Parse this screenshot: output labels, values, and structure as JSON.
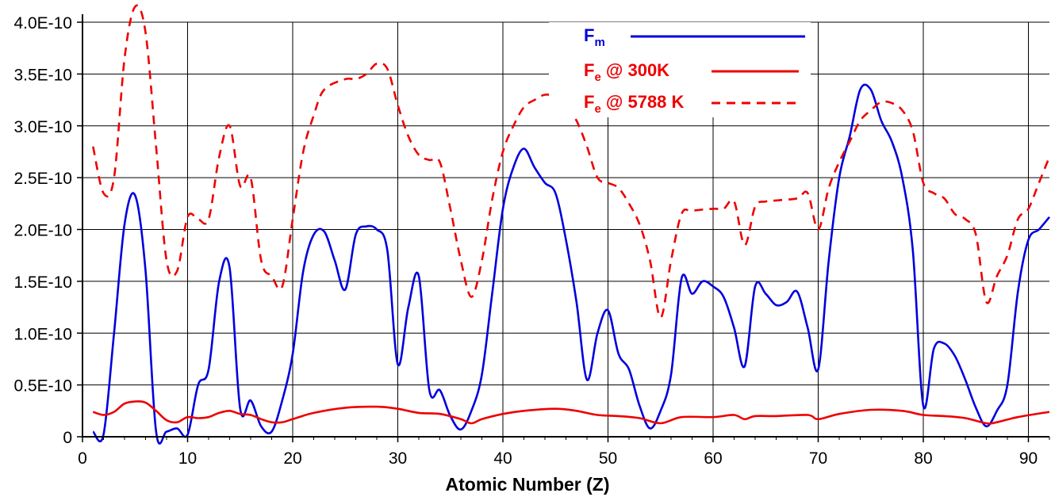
{
  "chart_data": {
    "type": "line",
    "title": "",
    "xlabel": "Atomic Number (Z)",
    "ylabel": "",
    "xlim": [
      0,
      92
    ],
    "ylim": [
      0,
      4e-10
    ],
    "x_ticks": [
      0,
      10,
      20,
      30,
      40,
      50,
      60,
      70,
      80,
      90
    ],
    "y_ticks": [
      0,
      5e-11,
      1e-10,
      1.5e-10,
      2e-10,
      2.5e-10,
      3e-10,
      3.5e-10,
      4e-10
    ],
    "y_tick_labels": [
      "0",
      "0.5E-10",
      "1.0E-10",
      "1.5E-10",
      "2.0E-10",
      "2.5E-10",
      "3.0E-10",
      "3.5E-10",
      "4.0E-10"
    ],
    "grid": true,
    "legend_position": "top-right",
    "series": [
      {
        "name": "F_m",
        "label_main": "F",
        "label_sub": "m",
        "label_suffix": "",
        "color": "#0000dd",
        "style": "solid",
        "points": [
          [
            1,
            5e-12
          ],
          [
            2,
            2e-12
          ],
          [
            3,
            1e-10
          ],
          [
            4,
            2.05e-10
          ],
          [
            5,
            2.33e-10
          ],
          [
            6,
            1.6e-10
          ],
          [
            7,
            5e-12
          ],
          [
            8,
            5e-12
          ],
          [
            9,
            8e-12
          ],
          [
            10,
            2e-12
          ],
          [
            11,
            5e-11
          ],
          [
            12,
            6.5e-11
          ],
          [
            13,
            1.5e-10
          ],
          [
            14,
            1.63e-10
          ],
          [
            15,
            2.7e-11
          ],
          [
            16,
            3.5e-11
          ],
          [
            17,
            1e-11
          ],
          [
            18,
            5e-12
          ],
          [
            19,
            3.5e-11
          ],
          [
            20,
            8e-11
          ],
          [
            21,
            1.6e-10
          ],
          [
            22,
            1.95e-10
          ],
          [
            23,
            1.98e-10
          ],
          [
            24,
            1.7e-10
          ],
          [
            25,
            1.42e-10
          ],
          [
            26,
            1.95e-10
          ],
          [
            27,
            2.03e-10
          ],
          [
            28,
            2e-10
          ],
          [
            29,
            1.8e-10
          ],
          [
            30,
            7e-11
          ],
          [
            31,
            1.25e-10
          ],
          [
            32,
            1.55e-10
          ],
          [
            33,
            4.5e-11
          ],
          [
            34,
            4.5e-11
          ],
          [
            35,
            2e-11
          ],
          [
            36,
            7e-12
          ],
          [
            37,
            2.5e-11
          ],
          [
            38,
            6e-11
          ],
          [
            39,
            1.4e-10
          ],
          [
            40,
            2.2e-10
          ],
          [
            41,
            2.6e-10
          ],
          [
            42,
            2.78e-10
          ],
          [
            43,
            2.6e-10
          ],
          [
            44,
            2.45e-10
          ],
          [
            45,
            2.35e-10
          ],
          [
            46,
            1.9e-10
          ],
          [
            47,
            1.3e-10
          ],
          [
            48,
            5.5e-11
          ],
          [
            49,
            1e-10
          ],
          [
            50,
            1.22e-10
          ],
          [
            51,
            8e-11
          ],
          [
            52,
            6.5e-11
          ],
          [
            53,
            3e-11
          ],
          [
            54,
            8e-12
          ],
          [
            55,
            2.5e-11
          ],
          [
            56,
            6e-11
          ],
          [
            57,
            1.53e-10
          ],
          [
            58,
            1.38e-10
          ],
          [
            59,
            1.5e-10
          ],
          [
            60,
            1.45e-10
          ],
          [
            61,
            1.35e-10
          ],
          [
            62,
            1.05e-10
          ],
          [
            63,
            6.8e-11
          ],
          [
            64,
            1.45e-10
          ],
          [
            65,
            1.38e-10
          ],
          [
            66,
            1.27e-10
          ],
          [
            67,
            1.3e-10
          ],
          [
            68,
            1.4e-10
          ],
          [
            69,
            1.05e-10
          ],
          [
            70,
            6.5e-11
          ],
          [
            71,
            1.7e-10
          ],
          [
            72,
            2.5e-10
          ],
          [
            73,
            2.9e-10
          ],
          [
            74,
            3.35e-10
          ],
          [
            75,
            3.35e-10
          ],
          [
            76,
            3.05e-10
          ],
          [
            77,
            2.85e-10
          ],
          [
            78,
            2.5e-10
          ],
          [
            79,
            1.8e-10
          ],
          [
            80,
            3e-11
          ],
          [
            81,
            8.5e-11
          ],
          [
            82,
            9e-11
          ],
          [
            83,
            7.8e-11
          ],
          [
            84,
            5.5e-11
          ],
          [
            85,
            2.8e-11
          ],
          [
            86,
            1e-11
          ],
          [
            87,
            2.5e-11
          ],
          [
            88,
            5e-11
          ],
          [
            89,
            1.4e-10
          ],
          [
            90,
            1.9e-10
          ],
          [
            91,
            2e-10
          ],
          [
            92,
            2.12e-10
          ]
        ]
      },
      {
        "name": "F_e @ 300K",
        "label_main": "F",
        "label_sub": "e",
        "label_suffix": " @ 300K",
        "color": "#ee0000",
        "style": "solid",
        "points": [
          [
            1,
            2.4e-11
          ],
          [
            2,
            2.1e-11
          ],
          [
            3,
            2.4e-11
          ],
          [
            4,
            3.2e-11
          ],
          [
            5,
            3.4e-11
          ],
          [
            6,
            3.3e-11
          ],
          [
            7,
            2.5e-11
          ],
          [
            8,
            1.6e-11
          ],
          [
            9,
            1.4e-11
          ],
          [
            10,
            1.9e-11
          ],
          [
            11,
            1.8e-11
          ],
          [
            12,
            1.9e-11
          ],
          [
            13,
            2.3e-11
          ],
          [
            14,
            2.5e-11
          ],
          [
            15,
            2.2e-11
          ],
          [
            16,
            2.1e-11
          ],
          [
            17,
            1.7e-11
          ],
          [
            18,
            1.4e-11
          ],
          [
            19,
            1.4e-11
          ],
          [
            20,
            1.7e-11
          ],
          [
            22,
            2.3e-11
          ],
          [
            25,
            2.8e-11
          ],
          [
            28,
            2.9e-11
          ],
          [
            30,
            2.7e-11
          ],
          [
            32,
            2.3e-11
          ],
          [
            34,
            2.2e-11
          ],
          [
            36,
            1.7e-11
          ],
          [
            37,
            1.3e-11
          ],
          [
            38,
            1.7e-11
          ],
          [
            40,
            2.2e-11
          ],
          [
            42,
            2.5e-11
          ],
          [
            45,
            2.7e-11
          ],
          [
            47,
            2.5e-11
          ],
          [
            49,
            2.1e-11
          ],
          [
            51,
            2e-11
          ],
          [
            53,
            1.8e-11
          ],
          [
            55,
            1.3e-11
          ],
          [
            57,
            1.9e-11
          ],
          [
            60,
            1.9e-11
          ],
          [
            62,
            2.1e-11
          ],
          [
            63,
            1.7e-11
          ],
          [
            64,
            2e-11
          ],
          [
            66,
            2e-11
          ],
          [
            69,
            2.1e-11
          ],
          [
            70,
            1.7e-11
          ],
          [
            72,
            2.2e-11
          ],
          [
            75,
            2.6e-11
          ],
          [
            78,
            2.5e-11
          ],
          [
            80,
            2.1e-11
          ],
          [
            82,
            2e-11
          ],
          [
            84,
            1.8e-11
          ],
          [
            86,
            1.3e-11
          ],
          [
            87,
            1.4e-11
          ],
          [
            89,
            1.9e-11
          ],
          [
            92,
            2.4e-11
          ]
        ]
      },
      {
        "name": "F_e @ 5788 K",
        "label_main": "F",
        "label_sub": "e",
        "label_suffix": " @ 5788 K",
        "color": "#ee0000",
        "style": "dashed",
        "points": [
          [
            1,
            2.8e-10
          ],
          [
            2,
            2.35e-10
          ],
          [
            3,
            2.5e-10
          ],
          [
            4,
            3.65e-10
          ],
          [
            5,
            4.15e-10
          ],
          [
            6,
            3.9e-10
          ],
          [
            7,
            2.8e-10
          ],
          [
            8,
            1.7e-10
          ],
          [
            9,
            1.6e-10
          ],
          [
            10,
            2.12e-10
          ],
          [
            11,
            2.1e-10
          ],
          [
            12,
            2.1e-10
          ],
          [
            13,
            2.7e-10
          ],
          [
            14,
            3e-10
          ],
          [
            15,
            2.42e-10
          ],
          [
            16,
            2.5e-10
          ],
          [
            17,
            1.7e-10
          ],
          [
            18,
            1.55e-10
          ],
          [
            19,
            1.45e-10
          ],
          [
            20,
            2.1e-10
          ],
          [
            21,
            2.75e-10
          ],
          [
            22,
            3.1e-10
          ],
          [
            23,
            3.35e-10
          ],
          [
            25,
            3.45e-10
          ],
          [
            26,
            3.45e-10
          ],
          [
            27,
            3.5e-10
          ],
          [
            28,
            3.6e-10
          ],
          [
            29,
            3.55e-10
          ],
          [
            30,
            3.2e-10
          ],
          [
            31,
            2.9e-10
          ],
          [
            32,
            2.72e-10
          ],
          [
            33,
            2.67e-10
          ],
          [
            34,
            2.65e-10
          ],
          [
            35,
            2.2e-10
          ],
          [
            36,
            1.7e-10
          ],
          [
            37,
            1.35e-10
          ],
          [
            38,
            1.7e-10
          ],
          [
            39,
            2.3e-10
          ],
          [
            40,
            2.75e-10
          ],
          [
            41,
            3e-10
          ],
          [
            42,
            3.18e-10
          ],
          [
            43,
            3.25e-10
          ],
          [
            44,
            3.3e-10
          ],
          [
            45,
            3.28e-10
          ],
          [
            46,
            3.2e-10
          ],
          [
            47,
            3.05e-10
          ],
          [
            48,
            2.8e-10
          ],
          [
            49,
            2.5e-10
          ],
          [
            50,
            2.45e-10
          ],
          [
            51,
            2.4e-10
          ],
          [
            52,
            2.25e-10
          ],
          [
            53,
            2.05e-10
          ],
          [
            54,
            1.7e-10
          ],
          [
            55,
            1.15e-10
          ],
          [
            56,
            1.7e-10
          ],
          [
            57,
            2.15e-10
          ],
          [
            58,
            2.18e-10
          ],
          [
            60,
            2.2e-10
          ],
          [
            61,
            2.2e-10
          ],
          [
            62,
            2.27e-10
          ],
          [
            63,
            1.85e-10
          ],
          [
            64,
            2.22e-10
          ],
          [
            65,
            2.27e-10
          ],
          [
            66,
            2.28e-10
          ],
          [
            68,
            2.3e-10
          ],
          [
            69,
            2.35e-10
          ],
          [
            70,
            2e-10
          ],
          [
            71,
            2.4e-10
          ],
          [
            72,
            2.65e-10
          ],
          [
            73,
            2.85e-10
          ],
          [
            74,
            3.05e-10
          ],
          [
            75,
            3.15e-10
          ],
          [
            76,
            3.23e-10
          ],
          [
            77,
            3.22e-10
          ],
          [
            78,
            3.15e-10
          ],
          [
            79,
            2.95e-10
          ],
          [
            80,
            2.45e-10
          ],
          [
            81,
            2.35e-10
          ],
          [
            82,
            2.3e-10
          ],
          [
            83,
            2.15e-10
          ],
          [
            84,
            2.1e-10
          ],
          [
            85,
            1.95e-10
          ],
          [
            86,
            1.3e-10
          ],
          [
            87,
            1.55e-10
          ],
          [
            88,
            1.75e-10
          ],
          [
            89,
            2.1e-10
          ],
          [
            90,
            2.2e-10
          ],
          [
            91,
            2.45e-10
          ],
          [
            92,
            2.7e-10
          ]
        ]
      }
    ]
  }
}
